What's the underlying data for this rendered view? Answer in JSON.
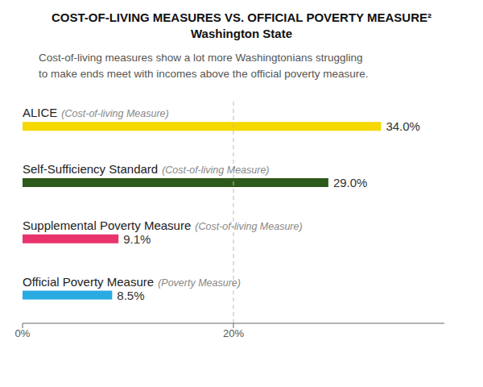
{
  "chart_data": {
    "type": "bar",
    "orientation": "horizontal",
    "title": "COST-OF-LIVING MEASURES VS. OFFICIAL POVERTY MEASURE²\nWashington State",
    "subtitle": "Cost-of-living measures show a lot more Washingtonians struggling\nto make ends meet with incomes above the official poverty measure.",
    "categories": [
      "Official Poverty Measure",
      "Supplemental Poverty Measure",
      "Self-Sufficiency Standard",
      "ALICE"
    ],
    "category_subtypes": [
      "(Poverty Measure)",
      "(Cost-of-living Measure)",
      "(Cost-of-living Measure)",
      "(Cost-of-living Measure)"
    ],
    "values": [
      8.5,
      9.1,
      29.0,
      34.0
    ],
    "value_labels": [
      "8.5%",
      "9.1%",
      "29.0%",
      "34.0%"
    ],
    "data_labels": true,
    "colors": [
      "#29ABE2",
      "#E8336D",
      "#2D5A1B",
      "#F5D800"
    ],
    "xlim": [
      0,
      40
    ],
    "xticks": [
      {
        "value": 0,
        "label": "0%"
      },
      {
        "value": 20,
        "label": "20%"
      }
    ],
    "reference_line": 20,
    "grid": false
  }
}
